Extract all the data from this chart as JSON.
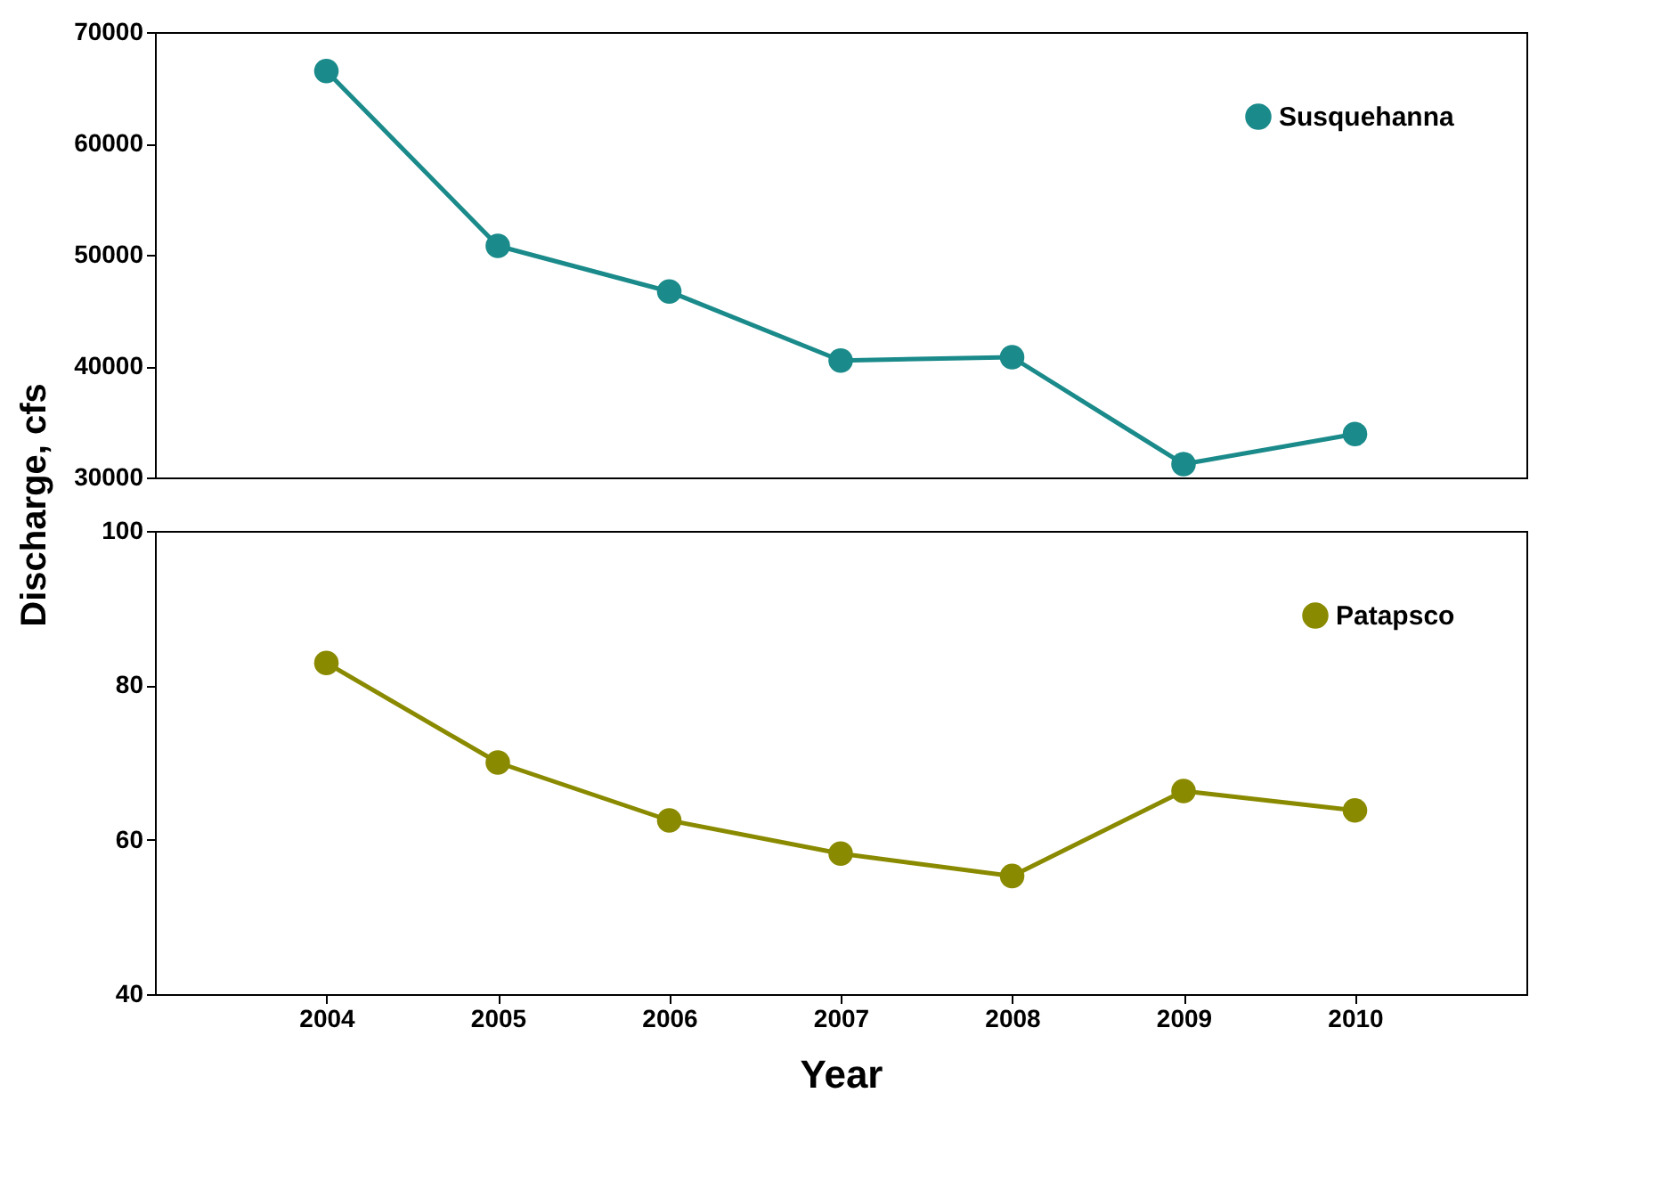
{
  "chart_data": [
    {
      "type": "line",
      "x": [
        2004,
        2005,
        2006,
        2007,
        2008,
        2009,
        2010
      ],
      "xlim": [
        2003,
        2011
      ],
      "xticks": [
        2004,
        2005,
        2006,
        2007,
        2008,
        2009,
        2010
      ],
      "ylim": [
        30000,
        70000
      ],
      "yticks": [
        30000,
        40000,
        50000,
        60000,
        70000
      ],
      "ylabel": "Discharge, cfs",
      "marker": "circle",
      "legend": "top right",
      "tick_labels": "y",
      "grid": false,
      "series": [
        {
          "name": "Susquehanna",
          "color": "#1a8a8a",
          "values": [
            66500,
            50800,
            46700,
            40500,
            40800,
            31200,
            33900
          ]
        }
      ]
    },
    {
      "type": "line",
      "x": [
        2004,
        2005,
        2006,
        2007,
        2008,
        2009,
        2010
      ],
      "xlim": [
        2003,
        2011
      ],
      "xticks": [
        2004,
        2005,
        2006,
        2007,
        2008,
        2009,
        2010
      ],
      "ylim": [
        40,
        100
      ],
      "yticks": [
        40,
        60,
        80,
        100
      ],
      "xlabel": "Year",
      "marker": "circle",
      "legend": "top right",
      "grid": false,
      "series": [
        {
          "name": "Patapsco",
          "color": "#8a8a00",
          "values": [
            82.9,
            70,
            62.5,
            58.2,
            55.3,
            66.3,
            63.8
          ]
        }
      ]
    }
  ]
}
